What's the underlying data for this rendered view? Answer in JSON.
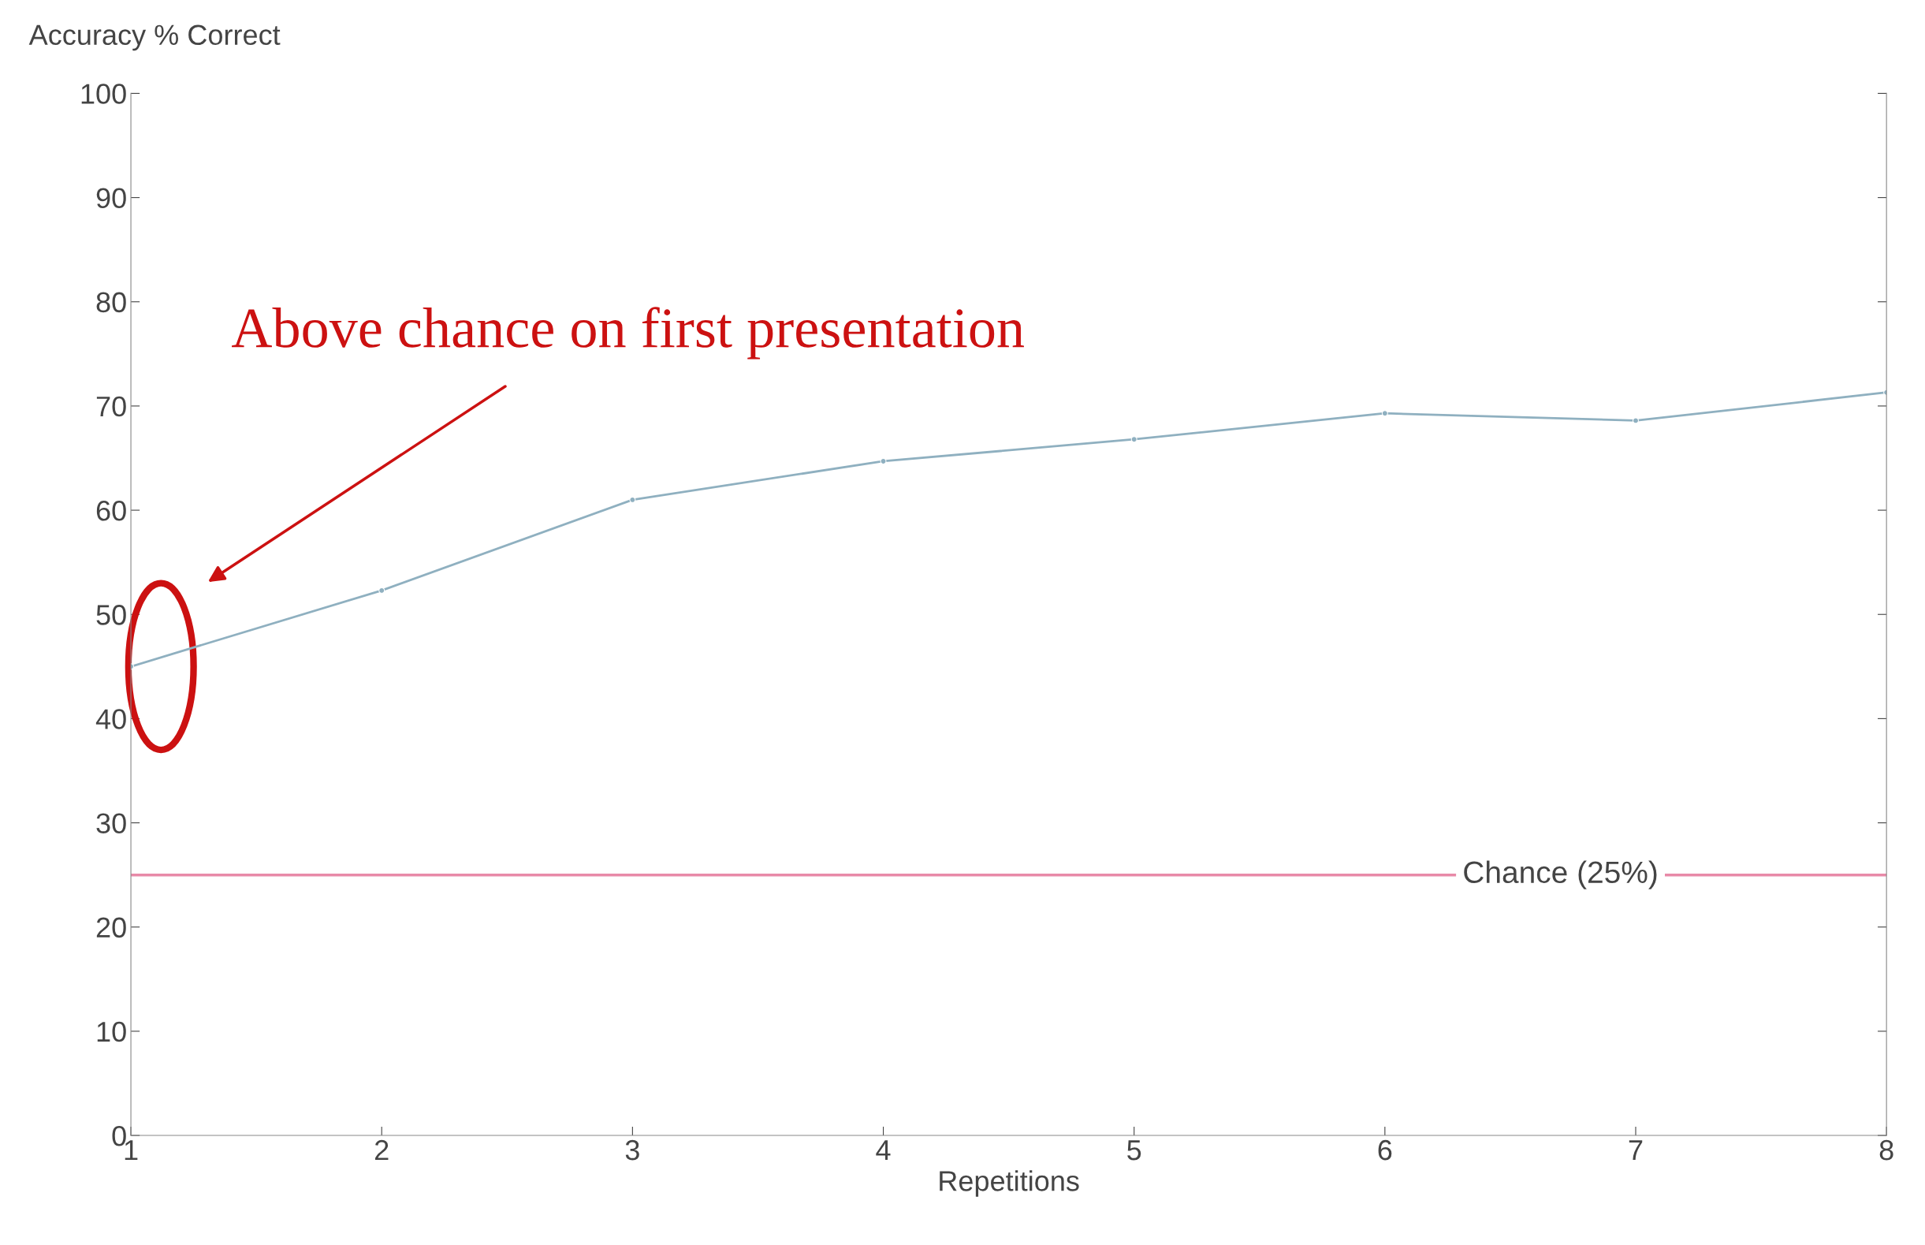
{
  "chart_data": {
    "type": "line",
    "ylabel": "Accuracy % Correct",
    "xlabel": "Repetitions",
    "x": [
      1,
      2,
      3,
      4,
      5,
      6,
      7,
      8
    ],
    "series": [
      {
        "color": "#8fb0c0",
        "values": [
          45,
          52.3,
          61,
          64.7,
          66.8,
          69.3,
          68.6,
          71.3
        ]
      }
    ],
    "xlim": [
      1,
      8
    ],
    "xticks": [
      1,
      2,
      3,
      4,
      5,
      6,
      7,
      8
    ],
    "ylim": [
      0,
      100
    ],
    "yticks": [
      0,
      10,
      20,
      30,
      40,
      50,
      60,
      70,
      80,
      90,
      100
    ],
    "ref_lines": [
      {
        "axis": "y",
        "value": 25,
        "label": "Chance (25%)",
        "color": "#e88aa8"
      }
    ],
    "annotations": [
      "Above chance on first presentation"
    ],
    "grid": false,
    "marker": "circle",
    "line_style": "solid"
  }
}
